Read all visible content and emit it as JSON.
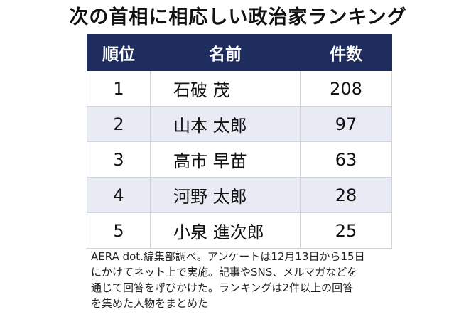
{
  "header": {
    "title": "次の首相に相応しい政治家ランキング"
  },
  "table": {
    "columns": [
      "順位",
      "名前",
      "件数"
    ],
    "rows": [
      [
        1,
        "石破 茂",
        208
      ],
      [
        2,
        "山本 太郎",
        97
      ],
      [
        3,
        "高市 早苗",
        63
      ],
      [
        4,
        "河野 太郎",
        28
      ],
      [
        5,
        "小泉 進次郎",
        25
      ]
    ]
  },
  "footnote": [
    "AERA dot.編集部調べ。アンケートは12月13日から15日",
    "にかけてネット上で実施。記事やSNS、メルマガなどを",
    "通じて回答を呼びかけた。ランキングは2件以上の回答",
    "を集めた人物をまとめた"
  ]
}
